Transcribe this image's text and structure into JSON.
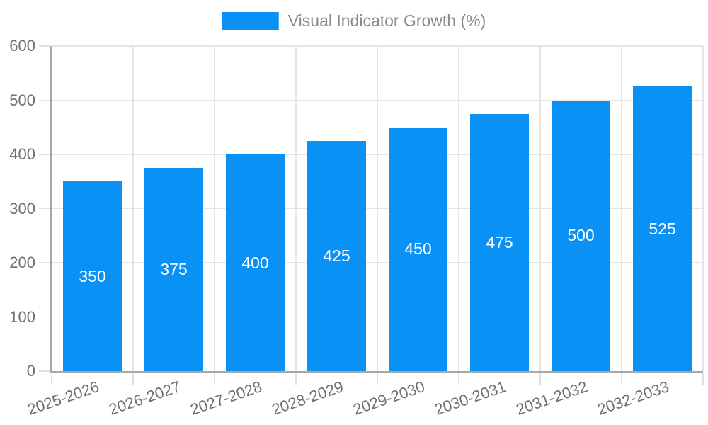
{
  "legend": {
    "label": "Visual Indicator Growth (%)"
  },
  "chart_data": {
    "type": "bar",
    "title": "",
    "legend_label": "Visual Indicator Growth (%)",
    "legend_position": "top-center",
    "categories": [
      "2025-2026",
      "2026-2027",
      "2027-2028",
      "2028-2029",
      "2029-2030",
      "2030-2031",
      "2031-2032",
      "2032-2033"
    ],
    "values": [
      350,
      375,
      400,
      425,
      450,
      475,
      500,
      525
    ],
    "bar_value_labels": [
      "350",
      "375",
      "400",
      "425",
      "450",
      "475",
      "500",
      "525"
    ],
    "xlabel": "",
    "ylabel": "",
    "ylim": [
      0,
      600
    ],
    "ytick_step": 100,
    "ytick_labels": [
      "0",
      "100",
      "200",
      "300",
      "400",
      "500",
      "600"
    ],
    "grid": true,
    "colors": {
      "bar": "#0a91f5",
      "bar_label": "#ffffff",
      "grid": "#e5e5e5",
      "axis": "#a8a8a8",
      "tick_label": "#707070",
      "legend_text": "#8a8a8a",
      "background": "#ffffff"
    }
  }
}
